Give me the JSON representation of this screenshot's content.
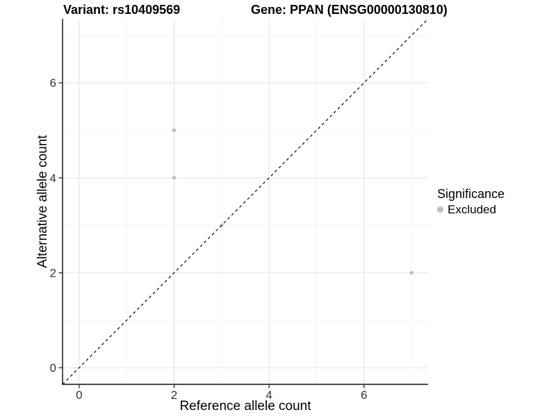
{
  "figure": {
    "title_left": "Variant: rs10409569",
    "title_right": "Gene: PPAN (ENSG00000130810)"
  },
  "legend": {
    "title": "Significance",
    "entries": [
      {
        "label": "Excluded",
        "color": "#bdbdbd"
      }
    ]
  },
  "colors": {
    "axis_line": "#333333",
    "tick_label": "#333333",
    "grid_major": "#e7e7e7",
    "grid_minor": "#f2f2f2",
    "reference_line": "#000000",
    "point": "#bdbdbd",
    "background": "#ffffff"
  },
  "chart_data": {
    "type": "scatter",
    "title": "Variant: rs10409569    Gene: PPAN (ENSG00000130810)",
    "xlabel": "Reference allele count",
    "ylabel": "Alternative allele count",
    "xlim": [
      -0.35,
      7.35
    ],
    "ylim": [
      -0.35,
      7.35
    ],
    "x_major_ticks": [
      0,
      2,
      4,
      6
    ],
    "y_major_ticks": [
      0,
      2,
      4,
      6
    ],
    "x_minor_ticks": [
      1,
      3,
      5,
      7
    ],
    "y_minor_ticks": [
      1,
      3,
      5,
      7
    ],
    "grid": "on",
    "legend_position": "right",
    "series": [
      {
        "name": "Excluded",
        "color": "#bdbdbd",
        "points": [
          [
            2,
            5
          ],
          [
            2,
            4
          ],
          [
            3,
            3
          ],
          [
            7,
            2
          ]
        ]
      }
    ],
    "reference_line": {
      "type": "identity y=x",
      "style": "dashed",
      "color": "#000000"
    }
  }
}
